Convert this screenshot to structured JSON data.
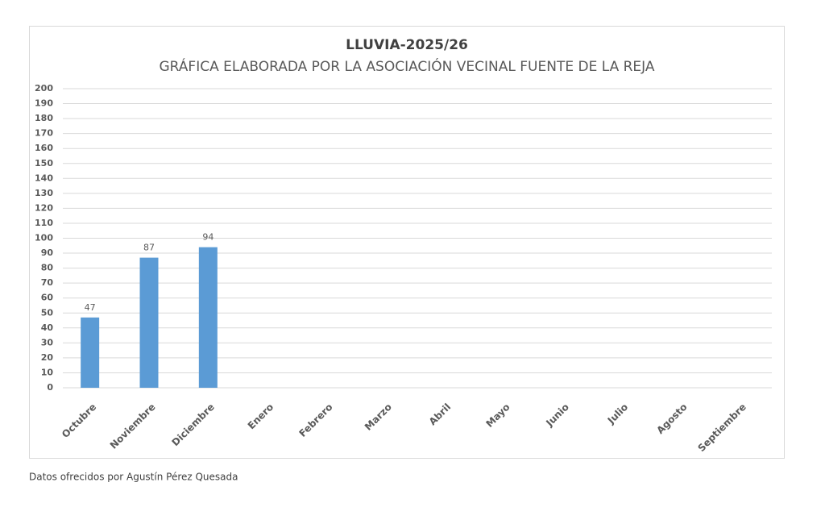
{
  "chart_data": {
    "type": "bar",
    "title": "LLUVIA-2025/26",
    "subtitle": "GRÁFICA ELABORADA POR LA ASOCIACIÓN VECINAL FUENTE DE LA REJA",
    "categories": [
      "Octubre",
      "Noviembre",
      "Diciembre",
      "Enero",
      "Febrero",
      "Marzo",
      "Abril",
      "Mayo",
      "Junio",
      "Julio",
      "Agosto",
      "Septiembre"
    ],
    "values": [
      47,
      87,
      94,
      null,
      null,
      null,
      null,
      null,
      null,
      null,
      null,
      null
    ],
    "color": "#5b9bd5",
    "ylim": [
      0,
      200
    ],
    "yticks": [
      0,
      10,
      20,
      30,
      40,
      50,
      60,
      70,
      80,
      90,
      100,
      110,
      120,
      130,
      140,
      150,
      160,
      170,
      180,
      190,
      200
    ],
    "grid": true
  },
  "footnote": "Datos ofrecidos por Agustín Pérez Quesada"
}
